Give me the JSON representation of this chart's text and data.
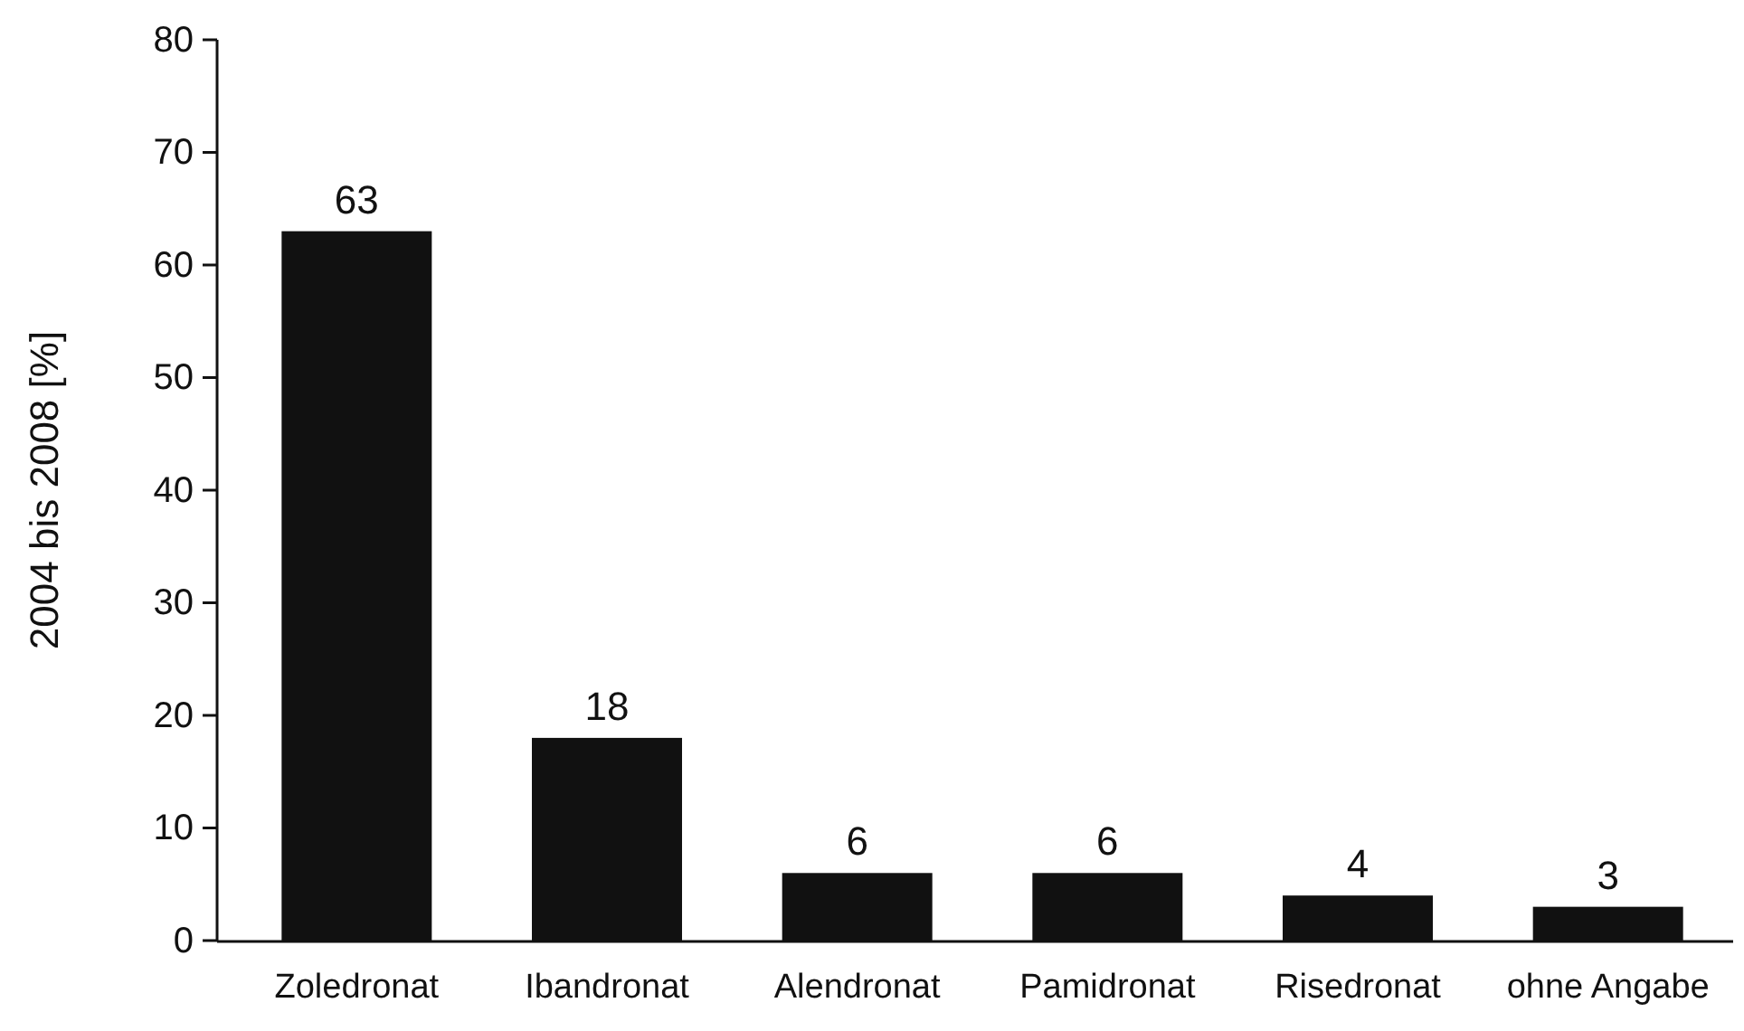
{
  "chart_data": {
    "type": "bar",
    "ylabel": "2004 bis 2008 [%]",
    "categories": [
      "Zoledronat",
      "Ibandronat",
      "Alendronat",
      "Pamidronat",
      "Risedronat",
      "ohne Angabe"
    ],
    "values": [
      63,
      18,
      6,
      6,
      4,
      3
    ],
    "color": "#111111",
    "ylim": [
      0,
      80
    ],
    "yticks": [
      0,
      10,
      20,
      30,
      40,
      50,
      60,
      70,
      80
    ],
    "grid": false,
    "data_labels": true
  }
}
